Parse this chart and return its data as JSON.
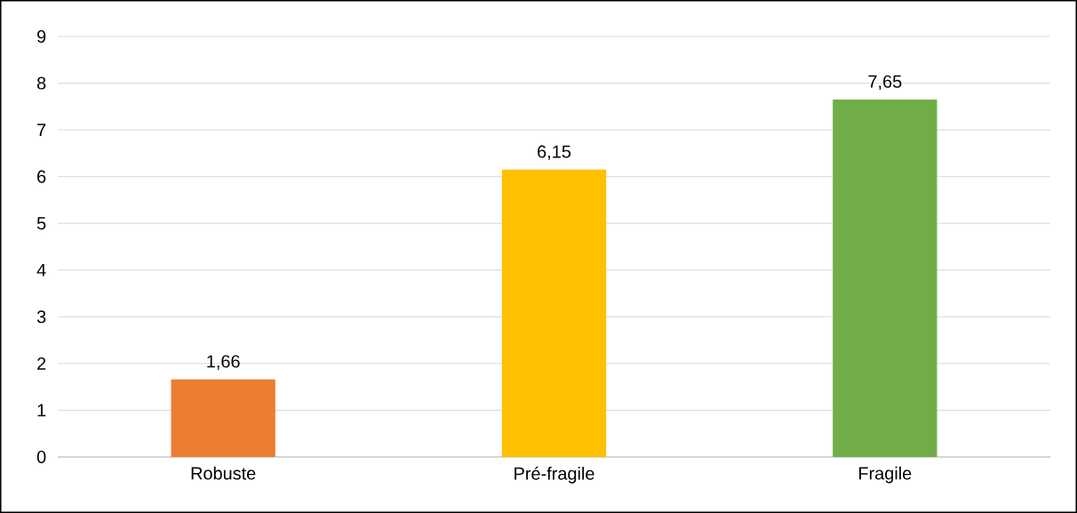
{
  "chart_data": {
    "type": "bar",
    "categories": [
      "Robuste",
      "Pré-fragile",
      "Fragile"
    ],
    "values": [
      1.66,
      6.15,
      7.65
    ],
    "colors": [
      "#ed7d31",
      "#ffc000",
      "#70ad47"
    ],
    "value_labels": [
      "1,66",
      "6,15",
      "7,65"
    ],
    "ylim": [
      0,
      9
    ],
    "yticks": [
      0,
      1,
      2,
      3,
      4,
      5,
      6,
      7,
      8,
      9
    ],
    "grid": "y"
  }
}
